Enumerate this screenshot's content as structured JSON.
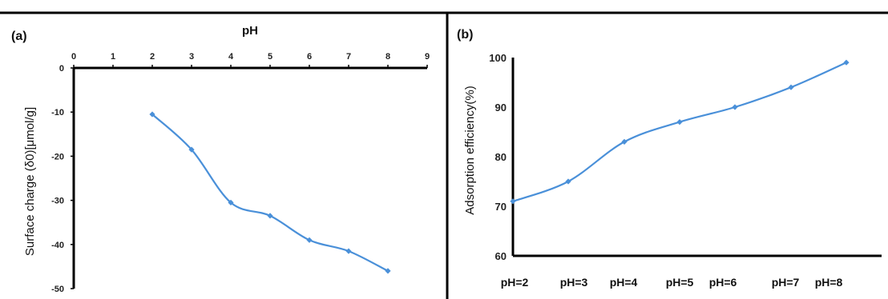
{
  "panels": [
    {
      "label": "(a)"
    },
    {
      "label": "(b)"
    }
  ],
  "colors": {
    "series": "#4a90d9",
    "axis": "#000000",
    "frame": "#000000"
  },
  "chart_data": [
    {
      "type": "line",
      "title": "",
      "xlabel": "pH",
      "ylabel": "Surface charge (δ0)[μmol/g]",
      "x_axis_position": "top",
      "xlim": [
        0,
        9
      ],
      "ylim": [
        -50,
        0
      ],
      "x_ticks": [
        "0",
        "1",
        "2",
        "3",
        "4",
        "5",
        "6",
        "7",
        "8",
        "9"
      ],
      "y_ticks": [
        "0",
        "-10",
        "-20",
        "-30",
        "-40",
        "-50"
      ],
      "grid": false,
      "series": [
        {
          "x": [
            2,
            3,
            4,
            5,
            6,
            7,
            8
          ],
          "values": [
            -10.5,
            -18.5,
            -30.5,
            -33.5,
            -39,
            -41.5,
            -46
          ]
        }
      ]
    },
    {
      "type": "line",
      "title": "",
      "xlabel": "",
      "ylabel": "Adsorption efficiency(%)",
      "categories": [
        "pH=2",
        "pH=3",
        "pH=4",
        "pH=5",
        "pH=6",
        "pH=7",
        "pH=8"
      ],
      "ylim": [
        60,
        100
      ],
      "y_ticks": [
        "100",
        "90",
        "80",
        "70",
        "60"
      ],
      "grid": false,
      "series": [
        {
          "values": [
            71,
            75,
            83,
            87,
            90,
            94,
            99
          ]
        }
      ]
    }
  ]
}
